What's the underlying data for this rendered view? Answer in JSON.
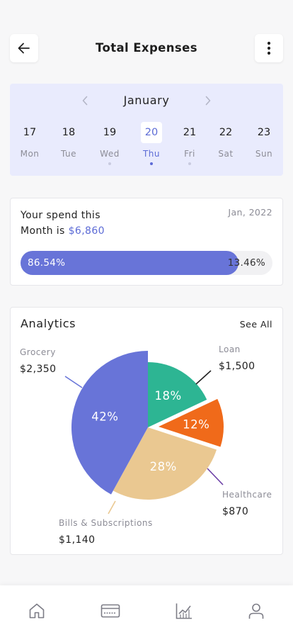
{
  "header": {
    "title": "Total Expenses",
    "back_icon": "arrow-left-icon",
    "menu_icon": "more-vertical-icon"
  },
  "calendar": {
    "month": "January",
    "days": [
      {
        "num": "17",
        "name": "Mon",
        "dot": false,
        "active": false
      },
      {
        "num": "18",
        "name": "Tue",
        "dot": false,
        "active": false
      },
      {
        "num": "19",
        "name": "Wed",
        "dot": true,
        "active": false
      },
      {
        "num": "20",
        "name": "Thu",
        "dot": true,
        "active": true
      },
      {
        "num": "21",
        "name": "Fri",
        "dot": true,
        "active": false
      },
      {
        "num": "22",
        "name": "Sat",
        "dot": false,
        "active": false
      },
      {
        "num": "23",
        "name": "Sun",
        "dot": false,
        "active": false
      }
    ]
  },
  "spend": {
    "line1": "Your spend this",
    "line2_prefix": "Month is ",
    "amount": "$6,860",
    "date": "Jan, 2022",
    "progress_fraction": 0.8654,
    "left_label": "86.54%",
    "right_label": "13.46%"
  },
  "analytics": {
    "title": "Analytics",
    "see_all": "See All",
    "chart_data": {
      "type": "pie",
      "slices": [
        {
          "name": "Loan",
          "amount": "$1,500",
          "percent": 18,
          "label": "18%",
          "color": "#2db593"
        },
        {
          "name": "Healthcare",
          "amount": "$870",
          "percent": 12,
          "label": "12%",
          "color": "#f06a1a"
        },
        {
          "name": "Bills & Subscriptions",
          "amount": "$1,140",
          "percent": 28,
          "label": "28%",
          "color": "#eac891"
        },
        {
          "name": "Grocery",
          "amount": "$2,350",
          "percent": 42,
          "label": "42%",
          "color": "#6874d8"
        }
      ]
    }
  },
  "colors": {
    "accent": "#5c6bd6",
    "calendar_bg": "#e9ebfd"
  },
  "nav": {
    "icons": [
      "home-icon",
      "card-icon",
      "chart-icon",
      "user-icon"
    ]
  }
}
